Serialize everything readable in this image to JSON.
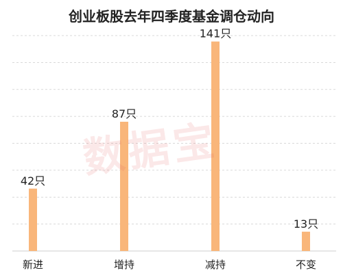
{
  "chart_data": {
    "type": "bar",
    "title": "创业板股去年四季度基金调仓动向",
    "categories": [
      "新进",
      "增持",
      "减持",
      "不变"
    ],
    "values": [
      42,
      87,
      141,
      13
    ],
    "value_labels": [
      "42只",
      "87只",
      "141只",
      "13只"
    ],
    "ylim": [
      0,
      145
    ],
    "grid": true,
    "legend": "none",
    "bar_color": "#F9B67A",
    "grid_color": "#CCCCCC"
  },
  "watermark": "数据宝"
}
